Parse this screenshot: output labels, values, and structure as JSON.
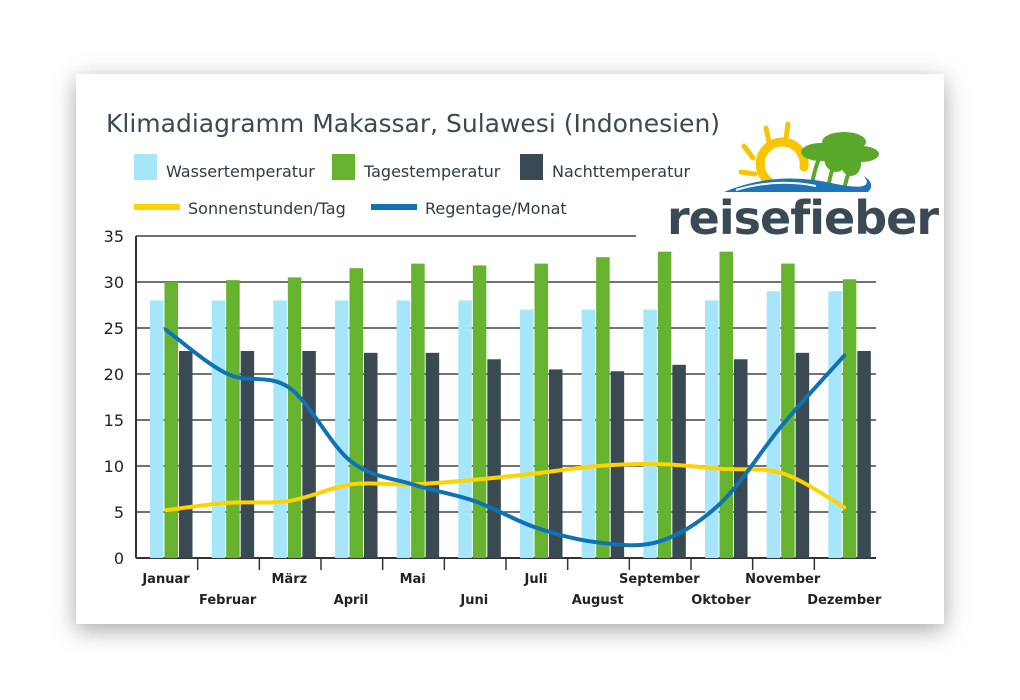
{
  "chart_data": {
    "type": "bar",
    "title": "Klimadiagramm Makassar, Sulawesi (Indonesien)",
    "categories": [
      "Januar",
      "Februar",
      "März",
      "April",
      "Mai",
      "Juni",
      "Juli",
      "August",
      "September",
      "Oktober",
      "November",
      "Dezember"
    ],
    "ylim": [
      0,
      35
    ],
    "yticks": [
      0,
      5,
      10,
      15,
      20,
      25,
      30,
      35
    ],
    "series": [
      {
        "name": "Wassertemperatur",
        "kind": "bar",
        "color": "#a6e6fb",
        "values": [
          28,
          28,
          28,
          28,
          28,
          28,
          27,
          27,
          27,
          28,
          29,
          29
        ]
      },
      {
        "name": "Tagestemperatur",
        "kind": "bar",
        "color": "#65b32e",
        "values": [
          30,
          30.2,
          30.5,
          31.5,
          32,
          31.8,
          32,
          32.7,
          33.3,
          33.3,
          32,
          30.3
        ]
      },
      {
        "name": "Nachttemperatur",
        "kind": "bar",
        "color": "#3a4a52",
        "values": [
          22.5,
          22.5,
          22.5,
          22.3,
          22.3,
          21.6,
          20.5,
          20.3,
          21,
          21.6,
          22.3,
          22.5
        ]
      },
      {
        "name": "Sonnenstunden/Tag",
        "kind": "line",
        "color": "#ffd200",
        "values": [
          5.2,
          6,
          6.2,
          8,
          8,
          8.5,
          9.2,
          10,
          10.2,
          9.7,
          9.2,
          5.5
        ]
      },
      {
        "name": "Regentage/Monat",
        "kind": "line",
        "color": "#0e72b5",
        "values": [
          24.8,
          20,
          18.5,
          10.5,
          8,
          6.2,
          3.3,
          1.7,
          1.8,
          6,
          14.5,
          22
        ]
      }
    ],
    "grid": true,
    "legend": "top-left"
  },
  "logo": {
    "text": "reisefieber",
    "colors": {
      "text": "#3a4a55",
      "sun": "#f7c600",
      "palm": "#5aa82a",
      "wave": "#1f73b7"
    }
  }
}
